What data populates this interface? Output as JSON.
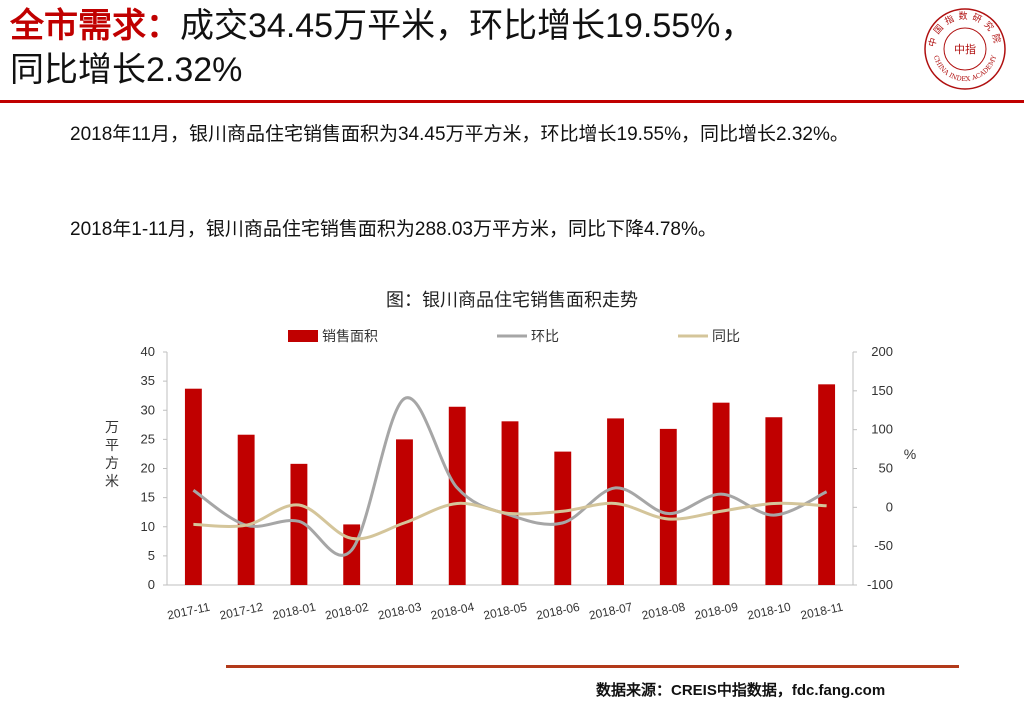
{
  "header": {
    "title_key": "全市需求：",
    "title_rest": "成交34.45万平米，环比增长19.55%，",
    "title_line2": "同比增长2.32%"
  },
  "logo": {
    "icon": "china-index-academy-seal-icon",
    "text_top": "中国指数研究院",
    "text_bottom": "CHINA INDEX ACADEMY",
    "center": "中指"
  },
  "body": {
    "paragraph1": "2018年11月，银川商品住宅销售面积为34.45万平方米，环比增长19.55%，同比增长2.32%。",
    "paragraph2": "2018年1-11月，银川商品住宅销售面积为288.03万平方米，同比下降4.78%。"
  },
  "footer": {
    "source": "数据来源：CREIS中指数据，fdc.fang.com"
  },
  "colors": {
    "accent_red": "#c00000",
    "bar_red": "#c00000",
    "mom_gray": "#a6a6a6",
    "yoy_tan": "#d4c59a",
    "rule_brown": "#b23a1a"
  },
  "chart_data": {
    "type": "bar",
    "title": "图：银川商品住宅销售面积走势",
    "categories": [
      "2017-11",
      "2017-12",
      "2018-01",
      "2018-02",
      "2018-03",
      "2018-04",
      "2018-05",
      "2018-06",
      "2018-07",
      "2018-08",
      "2018-09",
      "2018-10",
      "2018-11"
    ],
    "series": [
      {
        "name": "销售面积",
        "type": "bar",
        "axis": "left",
        "values": [
          33.7,
          25.8,
          20.8,
          10.4,
          25.0,
          30.6,
          28.1,
          22.9,
          28.6,
          26.8,
          31.3,
          28.8,
          34.45
        ]
      },
      {
        "name": "环比",
        "type": "line",
        "axis": "right",
        "values": [
          22,
          -23,
          -18,
          -55,
          140,
          25,
          -10,
          -20,
          25,
          -8,
          17,
          -10,
          20
        ]
      },
      {
        "name": "同比",
        "type": "line",
        "axis": "right",
        "values": [
          -22,
          -23,
          3,
          -40,
          -20,
          5,
          -8,
          -5,
          5,
          -15,
          -5,
          5,
          2
        ]
      }
    ],
    "ylabel": "万平方米",
    "y2label": "%",
    "ylim": [
      0,
      40
    ],
    "y2lim": [
      -100,
      200
    ],
    "yticks": [
      "0",
      "5",
      "10",
      "15",
      "20",
      "25",
      "30",
      "35",
      "40"
    ],
    "y2ticks": [
      "-100",
      "-50",
      "0",
      "50",
      "100",
      "150",
      "200"
    ],
    "legend": "top",
    "grid": false
  }
}
